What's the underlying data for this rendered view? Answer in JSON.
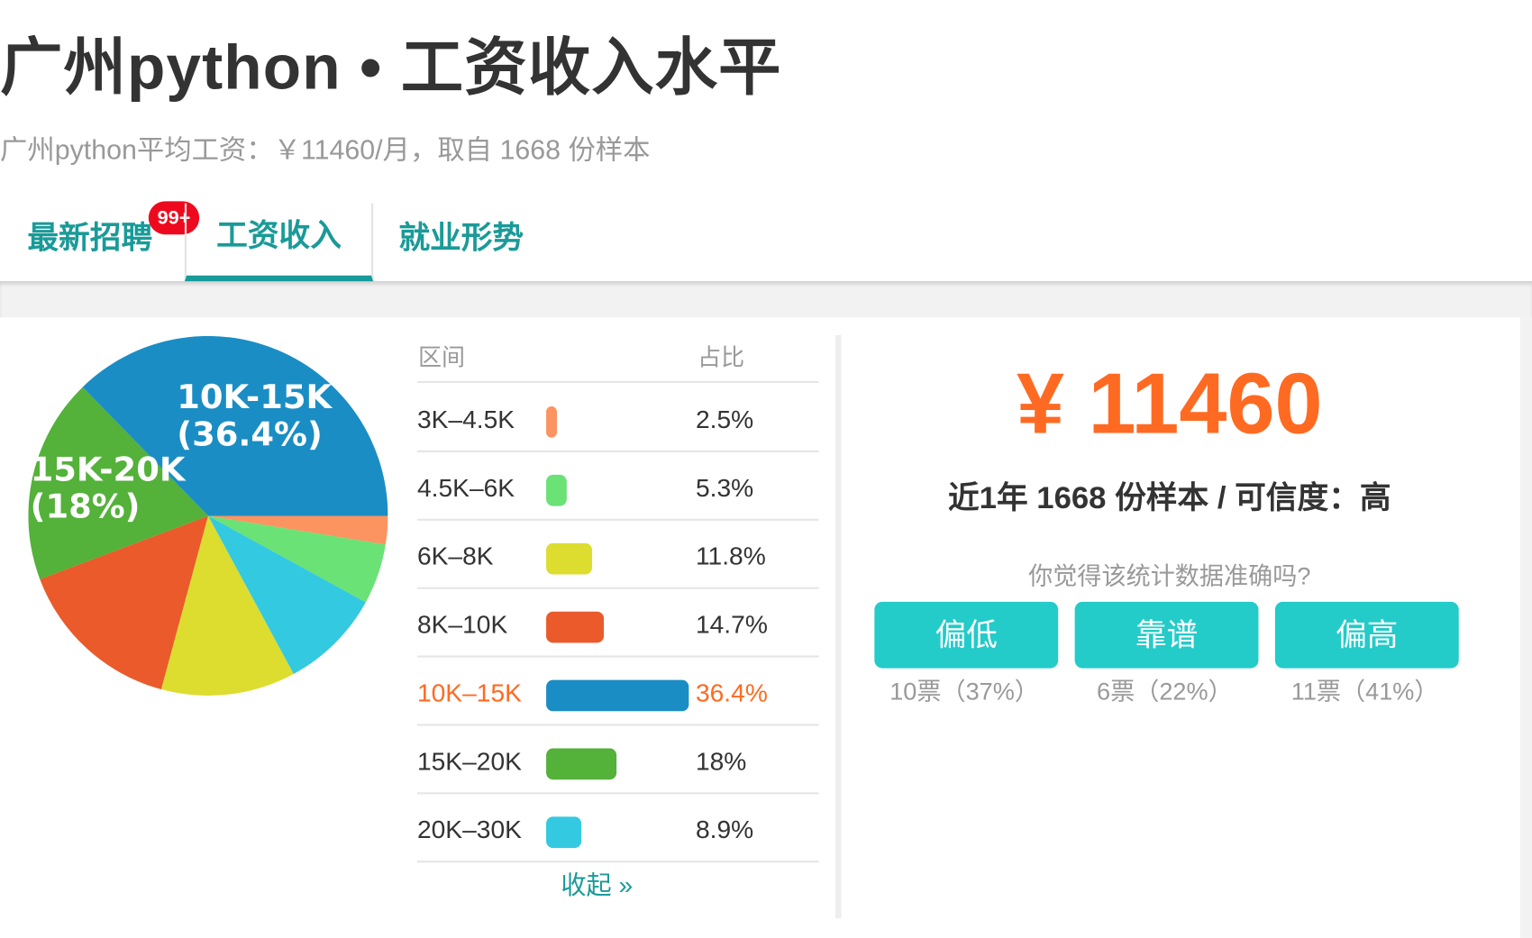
{
  "header": {
    "title": "广州python • 工资收入水平",
    "subtitle": "广州python平均工资：￥11460/月，取自 1668 份样本"
  },
  "tabs": [
    {
      "label": "最新招聘",
      "badge": "99+"
    },
    {
      "label": "工资收入",
      "active": true
    },
    {
      "label": "就业形势"
    }
  ],
  "table": {
    "headers": {
      "range": "区间",
      "share": "占比"
    },
    "rows": [
      {
        "range": "3K–4.5K",
        "share": "2.5%",
        "value": 2.5,
        "color": "#fb9460"
      },
      {
        "range": "4.5K–6K",
        "share": "5.3%",
        "value": 5.3,
        "color": "#6ae276"
      },
      {
        "range": "6K–8K",
        "share": "11.8%",
        "value": 11.8,
        "color": "#dcdd2e"
      },
      {
        "range": "8K–10K",
        "share": "14.7%",
        "value": 14.7,
        "color": "#ea5a2b"
      },
      {
        "range": "10K–15K",
        "share": "36.4%",
        "value": 36.4,
        "color": "#1a8dc4",
        "highlight": true
      },
      {
        "range": "15K–20K",
        "share": "18%",
        "value": 18,
        "color": "#54b13a"
      },
      {
        "range": "20K–30K",
        "share": "8.9%",
        "value": 8.9,
        "color": "#33c9e0"
      }
    ],
    "collapse": "收起 »"
  },
  "chart_data": {
    "type": "pie",
    "start": "3 o'clock, clockwise",
    "slices": [
      {
        "label": "3K-4.5K",
        "value": 2.5,
        "color": "#fb9460"
      },
      {
        "label": "4.5K-6K",
        "value": 5.3,
        "color": "#6ae276"
      },
      {
        "label": "20K-30K",
        "value": 8.9,
        "color": "#33c9e0"
      },
      {
        "label": "6K-8K",
        "value": 11.8,
        "color": "#dcdd2e"
      },
      {
        "label": "8K-10K",
        "value": 14.7,
        "color": "#ea5a2b"
      },
      {
        "label": "15K-20K",
        "value": 18,
        "color": "#54b13a"
      },
      {
        "label": "10K-15K",
        "value": 36.4,
        "color": "#1a8dc4"
      }
    ],
    "data_labels": {
      "big1": "10K-15K",
      "big1_pct": "(36.4%)",
      "big2": "15K-20K",
      "big2_pct": "(18%)"
    }
  },
  "summary": {
    "salary": "¥ 11460",
    "samples": "近1年 1668 份样本 / 可信度：高",
    "question": "你觉得该统计数据准确吗?",
    "votes": [
      {
        "label": "偏低",
        "count": "10票（37%）"
      },
      {
        "label": "靠谱",
        "count": "6票（22%）"
      },
      {
        "label": "偏高",
        "count": "11票（41%）"
      }
    ]
  },
  "colors": {
    "accent": "#1a9a98",
    "orange": "#ff6a22",
    "button": "#23cbc9",
    "badge": "#ee0a1e"
  }
}
